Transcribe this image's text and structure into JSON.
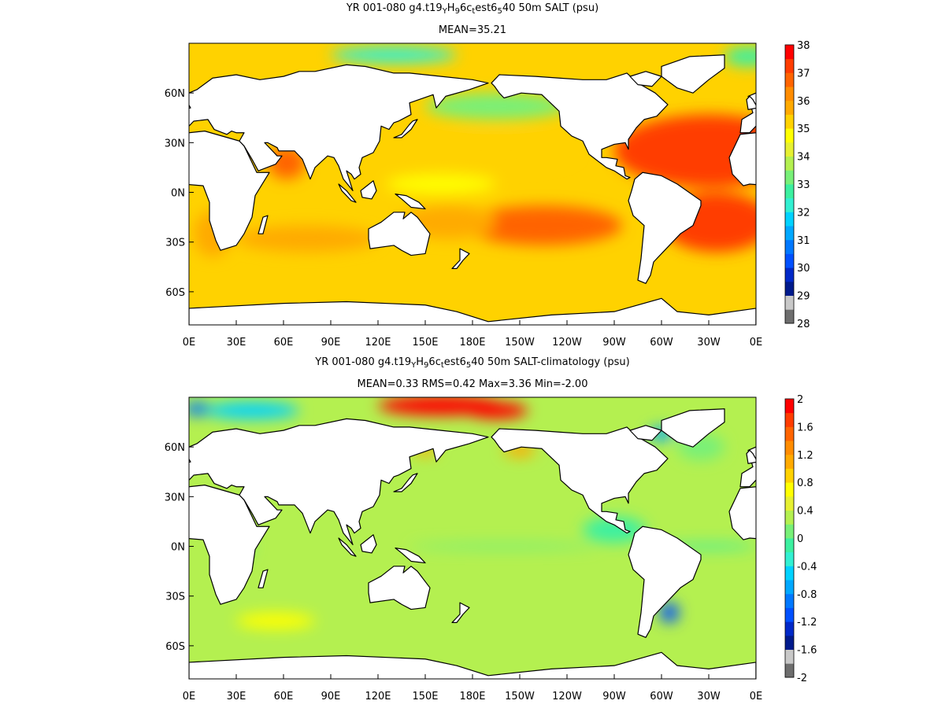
{
  "chart_data": [
    {
      "type": "heatmap",
      "title": "YR 001-080 g4.t19_Y H_9 6c_t est6_5 40 50m SALT (psu)",
      "title_parts": [
        {
          "t": "YR 001-080 g4.t19"
        },
        {
          "t": "Y",
          "sub": true
        },
        {
          "t": "H"
        },
        {
          "t": "9",
          "sub": true
        },
        {
          "t": "6c"
        },
        {
          "t": "t",
          "sub": true
        },
        {
          "t": "est6"
        },
        {
          "t": "5",
          "sub": true
        },
        {
          "t": "40 50m SALT (psu)"
        }
      ],
      "subtitle": "MEAN=35.21",
      "x_ticks": [
        "0E",
        "30E",
        "60E",
        "90E",
        "120E",
        "150E",
        "180E",
        "150W",
        "120W",
        "90W",
        "60W",
        "30W",
        "0E"
      ],
      "y_ticks": [
        "60N",
        "30N",
        "0N",
        "30S",
        "60S"
      ],
      "y_tick_lat": [
        60,
        30,
        0,
        -30,
        -60
      ],
      "ylim": [
        -80,
        90
      ],
      "colorbar": {
        "ticks": [
          "38",
          "37",
          "36",
          "35",
          "34",
          "33",
          "32",
          "31",
          "30",
          "29",
          "28"
        ],
        "colors": [
          "#6e6e6e",
          "#c8c8c8",
          "#001a8c",
          "#0028c8",
          "#0050ff",
          "#0078ff",
          "#00a8ff",
          "#00d2ff",
          "#32f0d2",
          "#3cf0a0",
          "#78f078",
          "#b4f050",
          "#e6f032",
          "#ffff00",
          "#ffd200",
          "#ffaa00",
          "#ff8c00",
          "#ff6400",
          "#ff3c00",
          "#ff0000"
        ]
      },
      "mean": 35.21,
      "blobs": [
        {
          "lon": 330,
          "lat": 25,
          "rx": 60,
          "ry": 22,
          "v": 37.3
        },
        {
          "lon": 335,
          "lat": -18,
          "rx": 35,
          "ry": 18,
          "v": 37.0
        },
        {
          "lon": 225,
          "lat": -20,
          "rx": 50,
          "ry": 12,
          "v": 36.6
        },
        {
          "lon": 195,
          "lat": 25,
          "rx": 50,
          "ry": 10,
          "v": 35.2
        },
        {
          "lon": 62,
          "lat": 18,
          "rx": 12,
          "ry": 10,
          "v": 36.6
        },
        {
          "lon": 75,
          "lat": -28,
          "rx": 45,
          "ry": 8,
          "v": 35.9
        },
        {
          "lon": 15,
          "lat": -25,
          "rx": 12,
          "ry": 14,
          "v": 35.7
        },
        {
          "lon": 165,
          "lat": -18,
          "rx": 30,
          "ry": 10,
          "v": 35.9
        },
        {
          "lon": 195,
          "lat": 52,
          "rx": 45,
          "ry": 8,
          "v": 33.4
        },
        {
          "lon": 160,
          "lat": 5,
          "rx": 35,
          "ry": 6,
          "v": 34.6
        },
        {
          "lon": 355,
          "lat": 82,
          "rx": 15,
          "ry": 6,
          "v": 32.8
        },
        {
          "lon": 130,
          "lat": 83,
          "rx": 40,
          "ry": 5,
          "v": 32.0
        }
      ]
    },
    {
      "type": "heatmap",
      "title": "YR 001-080 g4.t19_Y H_9 6c_t est6_5 40 50m SALT-climatology (psu)",
      "title_parts": [
        {
          "t": "YR 001-080 g4.t19"
        },
        {
          "t": "Y",
          "sub": true
        },
        {
          "t": "H"
        },
        {
          "t": "9",
          "sub": true
        },
        {
          "t": "6c"
        },
        {
          "t": "t",
          "sub": true
        },
        {
          "t": "est6"
        },
        {
          "t": "5",
          "sub": true
        },
        {
          "t": "40 50m SALT-climatology (psu)"
        }
      ],
      "subtitle": "MEAN=0.33   RMS=0.42   Max=3.36   Min=-2.00",
      "x_ticks": [
        "0E",
        "30E",
        "60E",
        "90E",
        "120E",
        "150E",
        "180E",
        "150W",
        "120W",
        "90W",
        "60W",
        "30W",
        "0E"
      ],
      "y_ticks": [
        "60N",
        "30N",
        "0N",
        "30S",
        "60S"
      ],
      "y_tick_lat": [
        60,
        30,
        0,
        -30,
        -60
      ],
      "ylim": [
        -80,
        90
      ],
      "colorbar": {
        "ticks": [
          "2",
          "1.6",
          "1.2",
          "0.8",
          "0.4",
          "0",
          "-0.4",
          "-0.8",
          "-1.2",
          "-1.6",
          "-2"
        ],
        "colors": [
          "#6e6e6e",
          "#c8c8c8",
          "#001a8c",
          "#0028c8",
          "#0050ff",
          "#0078ff",
          "#00a8ff",
          "#00d2ff",
          "#32f0d2",
          "#3cf0a0",
          "#78f078",
          "#b4f050",
          "#e6f032",
          "#ffff00",
          "#ffd200",
          "#ffaa00",
          "#ff8c00",
          "#ff6400",
          "#ff3c00",
          "#ff0000"
        ]
      },
      "mean": 0.33,
      "stats": {
        "mean": 0.33,
        "rms": 0.42,
        "max": 3.36,
        "min": -2.0
      },
      "blobs": [
        {
          "lon": 160,
          "lat": 85,
          "rx": 40,
          "ry": 6,
          "v": 2.2
        },
        {
          "lon": 195,
          "lat": 82,
          "rx": 20,
          "ry": 5,
          "v": 1.8
        },
        {
          "lon": 40,
          "lat": 82,
          "rx": 30,
          "ry": 5,
          "v": -0.6
        },
        {
          "lon": 5,
          "lat": 83,
          "rx": 8,
          "ry": 4,
          "v": -1.0
        },
        {
          "lon": 150,
          "lat": 58,
          "rx": 8,
          "ry": 3,
          "v": 1.0
        },
        {
          "lon": 210,
          "lat": 58,
          "rx": 10,
          "ry": 4,
          "v": 1.0
        },
        {
          "lon": 300,
          "lat": 68,
          "rx": 8,
          "ry": 4,
          "v": -0.8
        },
        {
          "lon": 325,
          "lat": 60,
          "rx": 15,
          "ry": 8,
          "v": 0.0
        },
        {
          "lon": 305,
          "lat": -40,
          "rx": 6,
          "ry": 6,
          "v": -1.2
        },
        {
          "lon": 270,
          "lat": 10,
          "rx": 20,
          "ry": 8,
          "v": -0.2
        },
        {
          "lon": 200,
          "lat": 0,
          "rx": 60,
          "ry": 2,
          "v": 0.0
        },
        {
          "lon": 330,
          "lat": 0,
          "rx": 30,
          "ry": 2,
          "v": -0.2
        },
        {
          "lon": 55,
          "lat": -45,
          "rx": 25,
          "ry": 5,
          "v": 0.6
        },
        {
          "lon": 30,
          "lat": 0,
          "rx": 10,
          "ry": 10,
          "v": 0.0
        }
      ]
    }
  ]
}
